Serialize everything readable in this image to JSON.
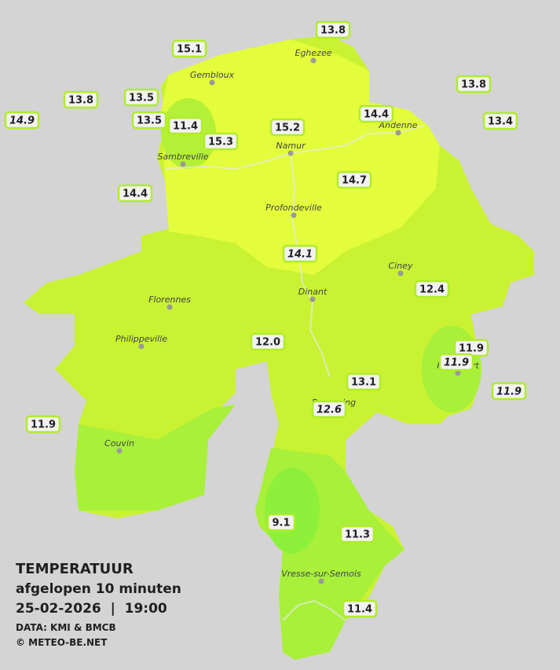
{
  "legend": {
    "title": "TEMPERATUUR",
    "subtitle": "afgelopen 10 minuten",
    "datetime": "25-02-2026  |  19:00",
    "source": "DATA: KMI & BMCB",
    "credit": "© METEO-BE.NET"
  },
  "towns": [
    "Eghezee",
    "Gembloux",
    "Sambreville",
    "Namur",
    "Andenne",
    "Profondeville",
    "Ciney",
    "Dinant",
    "Florennes",
    "Philippeville",
    "Rochefort",
    "Beauraing",
    "Couvin",
    "Vresse-sur-Semois"
  ],
  "stations": [
    {
      "label": "13.8",
      "italic": false
    },
    {
      "label": "15.1",
      "italic": false
    },
    {
      "label": "13.8",
      "italic": false
    },
    {
      "label": "13.8",
      "italic": false
    },
    {
      "label": "13.5",
      "italic": false
    },
    {
      "label": "14.9",
      "italic": true
    },
    {
      "label": "13.5",
      "italic": false
    },
    {
      "label": "11.4",
      "italic": false
    },
    {
      "label": "14.4",
      "italic": false
    },
    {
      "label": "15.2",
      "italic": false
    },
    {
      "label": "13.4",
      "italic": false
    },
    {
      "label": "15.3",
      "italic": false
    },
    {
      "label": "14.7",
      "italic": false
    },
    {
      "label": "14.4",
      "italic": false
    },
    {
      "label": "14.1",
      "italic": true
    },
    {
      "label": "12.4",
      "italic": false
    },
    {
      "label": "12.0",
      "italic": false
    },
    {
      "label": "11.9",
      "italic": false
    },
    {
      "label": "11.9",
      "italic": true
    },
    {
      "label": "11.9",
      "italic": true
    },
    {
      "label": "13.1",
      "italic": false
    },
    {
      "label": "12.6",
      "italic": true
    },
    {
      "label": "11.9",
      "italic": false
    },
    {
      "label": "9.1",
      "italic": false
    },
    {
      "label": "11.3",
      "italic": false
    },
    {
      "label": "11.4",
      "italic": false
    }
  ]
}
